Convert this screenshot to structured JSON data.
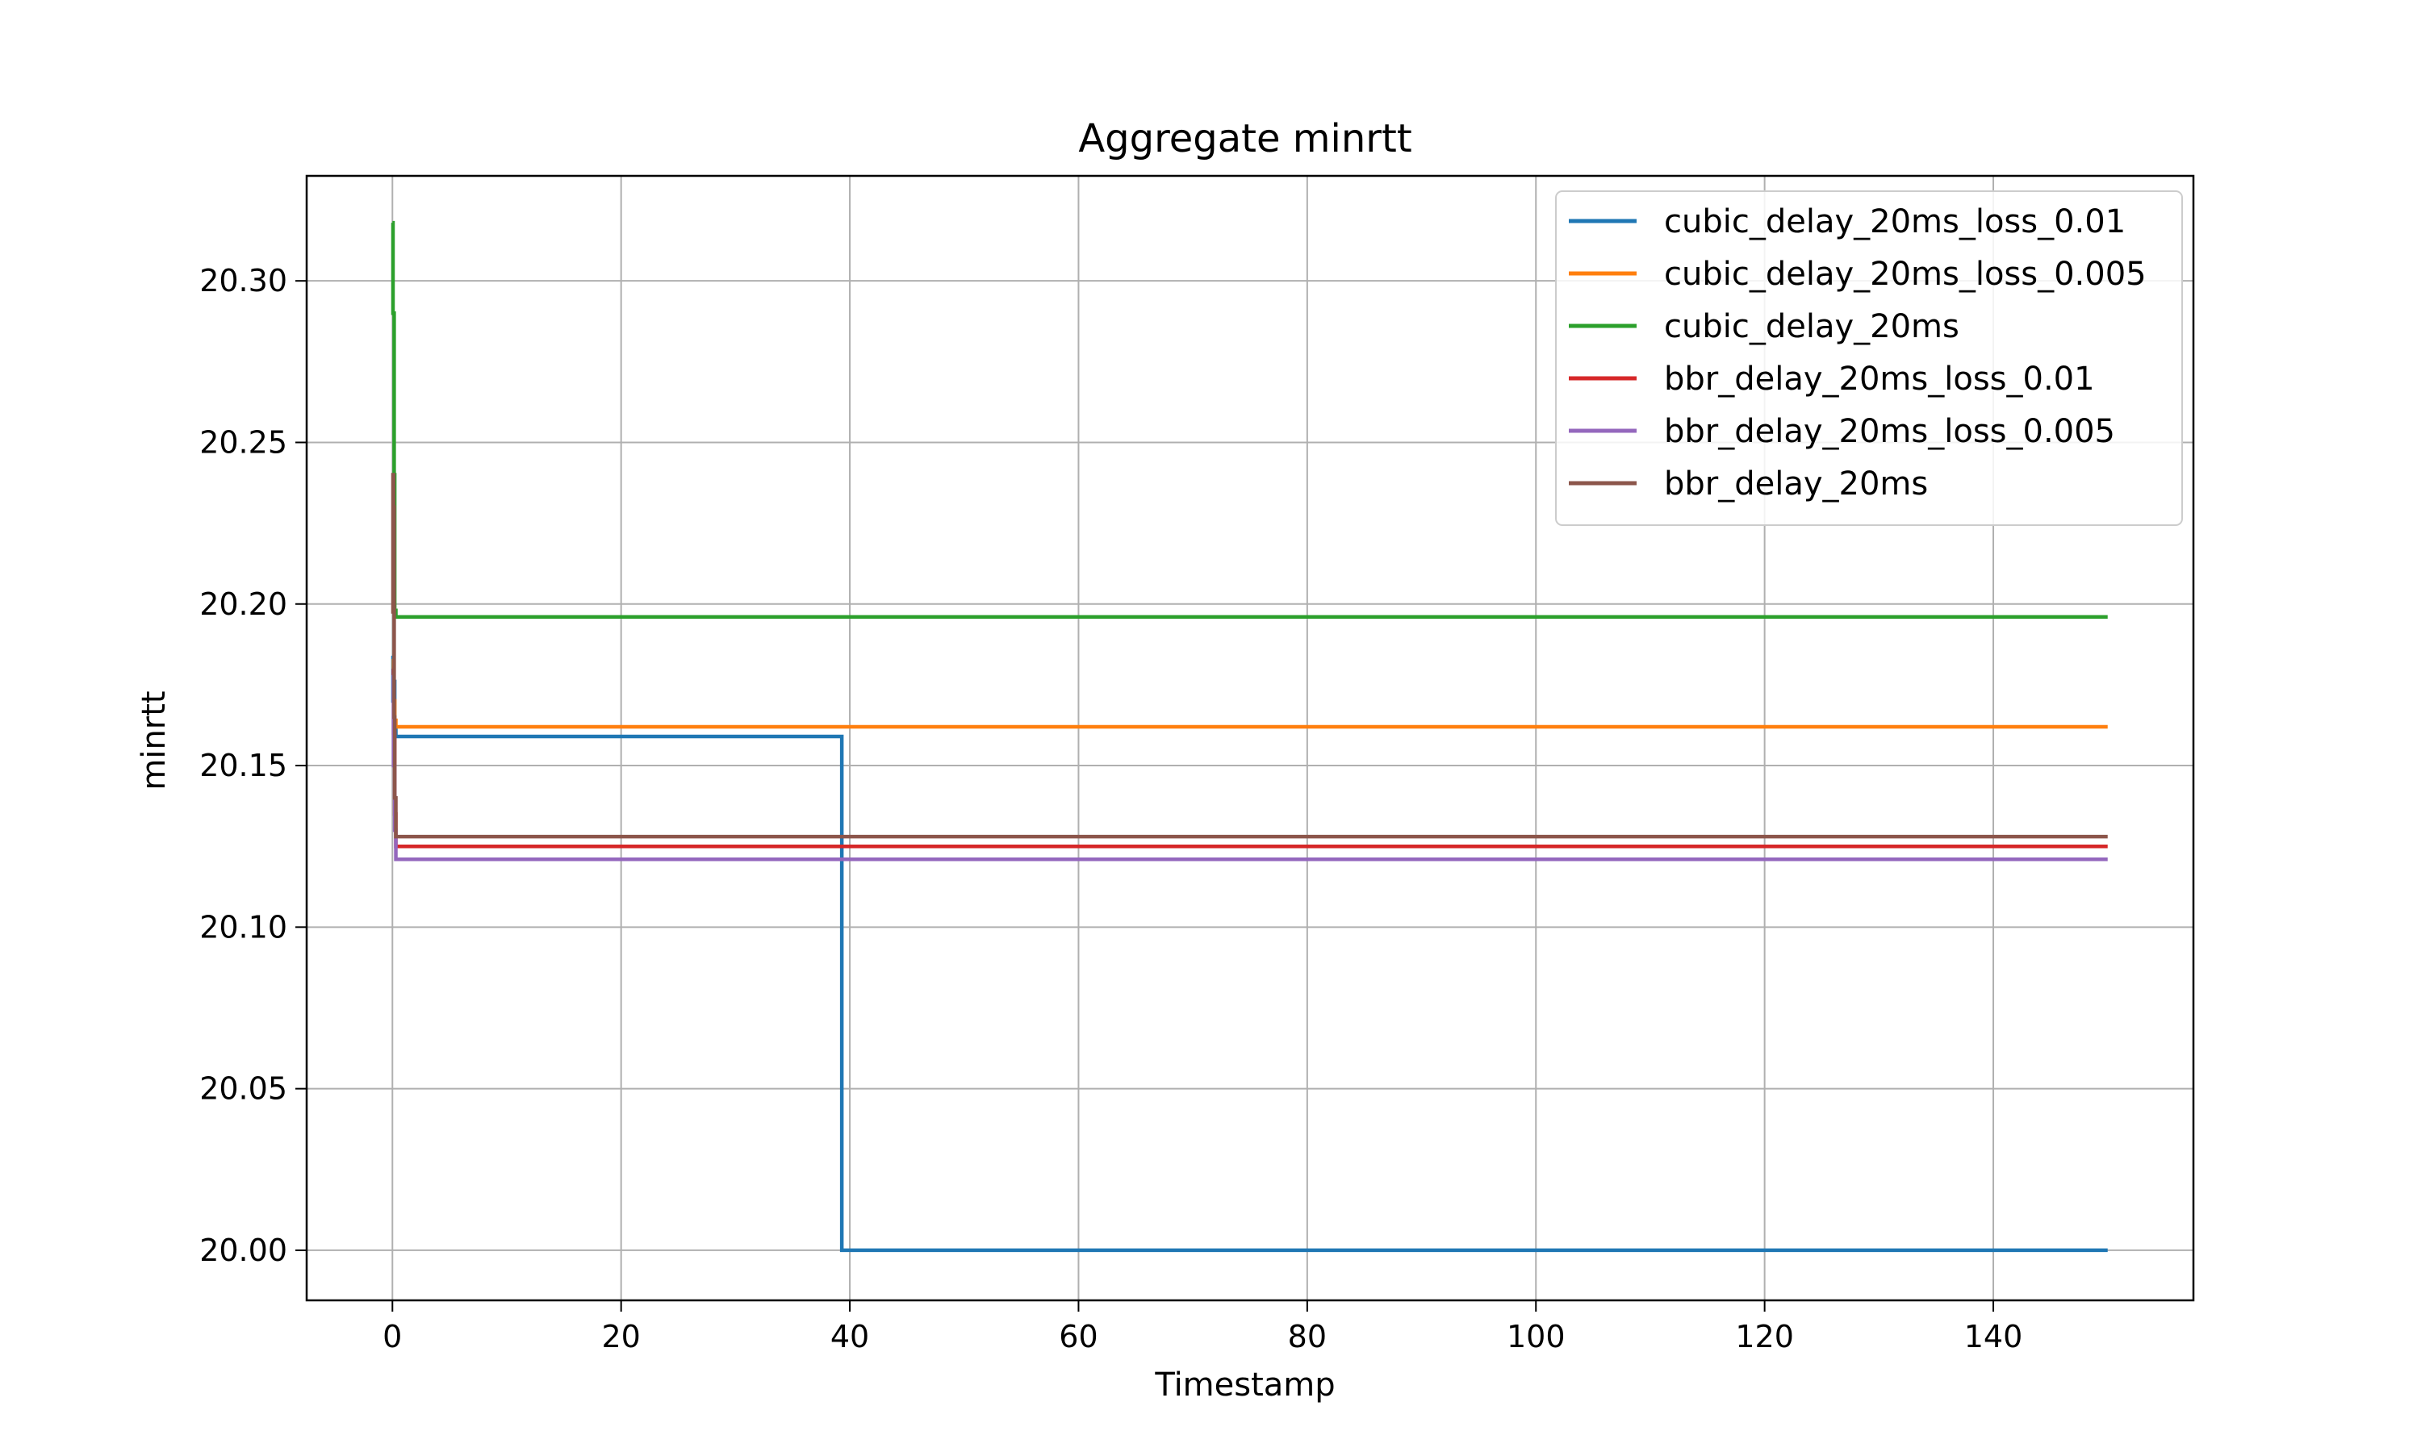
{
  "chart_data": {
    "type": "line",
    "title": "Aggregate minrtt",
    "xlabel": "Timestamp",
    "ylabel": "minrtt",
    "xlim": [
      -7.5,
      157.5
    ],
    "ylim": [
      19.9845,
      20.3325
    ],
    "xticks": [
      0,
      20,
      40,
      60,
      80,
      100,
      120,
      140
    ],
    "xtick_labels": [
      "0",
      "20",
      "40",
      "60",
      "80",
      "100",
      "120",
      "140"
    ],
    "yticks": [
      20.0,
      20.05,
      20.1,
      20.15,
      20.2,
      20.25,
      20.3
    ],
    "ytick_labels": [
      "20.00",
      "20.05",
      "20.10",
      "20.15",
      "20.20",
      "20.25",
      "20.30"
    ],
    "grid": true,
    "legend_position": "upper-right",
    "step": true,
    "series": [
      {
        "name": "cubic_delay_20ms_loss_0.01",
        "color": "#1f77b4",
        "x": [
          0,
          0.05,
          0.1,
          0.2,
          0.3,
          39.2,
          39.3,
          150
        ],
        "y": [
          20.184,
          20.17,
          20.176,
          20.162,
          20.159,
          20.159,
          20.0,
          20.0
        ]
      },
      {
        "name": "cubic_delay_20ms_loss_0.005",
        "color": "#ff7f0e",
        "x": [
          0,
          0.1,
          0.2,
          0.3,
          150
        ],
        "y": [
          20.183,
          20.17,
          20.164,
          20.162,
          20.162
        ]
      },
      {
        "name": "cubic_delay_20ms",
        "color": "#2ca02c",
        "x": [
          0,
          0.05,
          0.1,
          0.15,
          0.2,
          0.3,
          150
        ],
        "y": [
          20.318,
          20.29,
          20.29,
          20.24,
          20.198,
          20.196,
          20.196
        ]
      },
      {
        "name": "bbr_delay_20ms_loss_0.01",
        "color": "#d62728",
        "x": [
          0,
          0.1,
          0.2,
          0.3,
          150
        ],
        "y": [
          20.18,
          20.16,
          20.135,
          20.125,
          20.125
        ]
      },
      {
        "name": "bbr_delay_20ms_loss_0.005",
        "color": "#9467bd",
        "x": [
          0,
          0.1,
          0.2,
          0.3,
          150
        ],
        "y": [
          20.178,
          20.15,
          20.13,
          20.121,
          20.121
        ]
      },
      {
        "name": "bbr_delay_20ms",
        "color": "#8c564b",
        "x": [
          0,
          0.05,
          0.1,
          0.15,
          0.2,
          0.3,
          150
        ],
        "y": [
          20.197,
          20.24,
          20.23,
          20.165,
          20.14,
          20.128,
          20.128
        ]
      }
    ]
  }
}
